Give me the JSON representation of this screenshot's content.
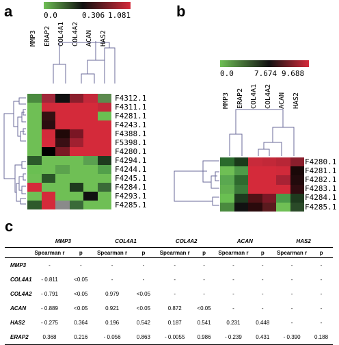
{
  "panels": {
    "a": "a",
    "b": "b",
    "c": "c"
  },
  "heatmap_a": {
    "colorbar_labels": [
      "0.0",
      "0.306",
      "1.081"
    ],
    "columns": [
      "MMP3",
      "ERAP2",
      "COL4A1",
      "COL4A2",
      "ACAN",
      "HAS2"
    ],
    "rows": [
      "F4312.1",
      "F4311.1",
      "F4281.1",
      "F4243.1",
      "F4388.1",
      "F5398.1",
      "F4280.1",
      "F4294.1",
      "F4244.1",
      "F4245.1",
      "F4284.1",
      "F4293.1",
      "F4285.1"
    ],
    "colors": [
      [
        "#4a8a3f",
        "#a0283a",
        "#111111",
        "#8a1e2c",
        "#c4283a",
        "#5c8a4e"
      ],
      [
        "#6fbf55",
        "#d22a3a",
        "#d42a3a",
        "#d42a3a",
        "#d42a3a",
        "#c3283a"
      ],
      [
        "#6fbf55",
        "#351012",
        "#d42a3a",
        "#d42a3a",
        "#d42a3a",
        "#6abf52"
      ],
      [
        "#6fbf55",
        "#2b0c10",
        "#d42a3a",
        "#d42a3a",
        "#d42a3a",
        "#d42a3a"
      ],
      [
        "#6fbf55",
        "#d22a3a",
        "#200808",
        "#7a1624",
        "#d42a3a",
        "#d42a3a"
      ],
      [
        "#6fbf55",
        "#d42a3a",
        "#3a0f14",
        "#a02030",
        "#d42a3a",
        "#d42a3a"
      ],
      [
        "#6fbf55",
        "#000000",
        "#7a1a24",
        "#d42a3a",
        "#d42a3a",
        "#d42a3a"
      ],
      [
        "#2b5a2a",
        "#6fbf55",
        "#6fbf55",
        "#6fbf55",
        "#5aa050",
        "#1e3a1e"
      ],
      [
        "#6abf52",
        "#6fbf55",
        "#5ba34d",
        "#6fbf55",
        "#6fbf55",
        "#52a04a"
      ],
      [
        "#6fbf55",
        "#2a5528",
        "#6fbf55",
        "#6fbf55",
        "#6fbf55",
        "#6fbf55"
      ],
      [
        "#d42a3a",
        "#6fbf55",
        "#6fbf55",
        "#1e3a1e",
        "#6fbf55",
        "#3a6a38"
      ],
      [
        "#6fbf55",
        "#d42a3a",
        "#6fbf55",
        "#6fbf55",
        "#111111",
        "#6fbf55"
      ],
      [
        "#2e5a2c",
        "#d42a3a",
        "#8a8a8a",
        "#3a6a38",
        "#6fbf55",
        "#6fbf55"
      ]
    ]
  },
  "heatmap_b": {
    "colorbar_labels": [
      "0.0",
      "7.674",
      "9.688"
    ],
    "columns": [
      "MMP3",
      "ERAP2",
      "COL4A1",
      "COL4A2",
      "ACAN",
      "HAS2"
    ],
    "rows": [
      "F4280.1",
      "F4281.1",
      "F4282.1",
      "F4283.1",
      "F4284.1",
      "F4285.1"
    ],
    "colors": [
      [
        "#2a6a2c",
        "#1a3a1a",
        "#c82a3a",
        "#c22838",
        "#b82636",
        "#8a1e2c"
      ],
      [
        "#6fbf55",
        "#4f9a48",
        "#d42a3a",
        "#d42a3a",
        "#d02a3a",
        "#1a0808"
      ],
      [
        "#5aa850",
        "#2e6a2e",
        "#d42a3a",
        "#d42a3a",
        "#a82234",
        "#220a0c"
      ],
      [
        "#62b050",
        "#3a7a38",
        "#d42a3a",
        "#d42a3a",
        "#d42a3a",
        "#300c10"
      ],
      [
        "#6abf52",
        "#1e3a1e",
        "#501216",
        "#7a1826",
        "#4a9a48",
        "#1e3a1e"
      ],
      [
        "#4a8a3f",
        "#111111",
        "#2a0a0c",
        "#5a1a1e",
        "#6fbf55",
        "#2a4a28"
      ]
    ]
  },
  "table": {
    "gene_headers": [
      "MMP3",
      "COL4A1",
      "COL4A2",
      "ACAN",
      "HAS2"
    ],
    "sub_headers": [
      "Spearman r",
      "p"
    ],
    "rows": [
      {
        "name": "MMP3",
        "cells": [
          "-",
          "-",
          "-",
          "-",
          "-",
          "-",
          "-",
          "-",
          "-",
          "-"
        ]
      },
      {
        "name": "COL4A1",
        "cells": [
          "- 0.811",
          "<0.05",
          "-",
          "-",
          "-",
          "-",
          "-",
          "-",
          "-",
          "-"
        ]
      },
      {
        "name": "COL4A2",
        "cells": [
          "- 0.791",
          "<0.05",
          "0.979",
          "<0.05",
          "-",
          "-",
          "-",
          "-",
          "-",
          "-"
        ]
      },
      {
        "name": "ACAN",
        "cells": [
          "- 0.889",
          "<0.05",
          "0.921",
          "<0.05",
          "0.872",
          "<0.05",
          "-",
          "-",
          "-",
          "-"
        ]
      },
      {
        "name": "HAS2",
        "cells": [
          "- 0.275",
          "0.364",
          "0.196",
          "0.542",
          "0.187",
          "0.541",
          "0.231",
          "0.448",
          "-",
          "-"
        ]
      },
      {
        "name": "ERAP2",
        "cells": [
          "0.368",
          "0.216",
          "- 0.056",
          "0.863",
          "- 0.0055",
          "0.986",
          "- 0.239",
          "0.431",
          "- 0.390",
          "0.188"
        ]
      }
    ]
  }
}
